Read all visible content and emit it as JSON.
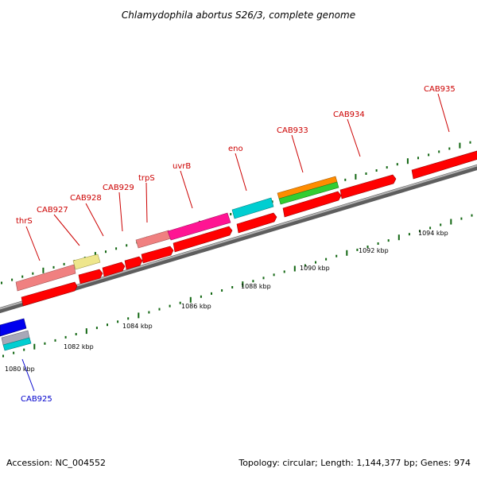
{
  "title": "Chlamydophila abortus S26/3, complete genome",
  "footer": {
    "accession": "Accession: NC_004552",
    "summary": "Topology: circular; Length: 1,144,377 bp; Genes: 974"
  },
  "colors": {
    "backbone": "#8c8c8c",
    "tick": "#116611",
    "label_red": "#cc0000",
    "label_blue": "#0000cc",
    "cds_red": "#ff0000",
    "pink": "#f08080",
    "khaki": "#eee68c",
    "magenta": "#ff1493",
    "cyan": "#00ced1",
    "orange": "#ff8c00",
    "green": "#32cd32",
    "blue": "#0000ee",
    "gray": "#a8a8b8"
  },
  "scale": {
    "unit": "kbp",
    "labels": [
      "1080 kbp",
      "1082 kbp",
      "1084 kbp",
      "1086 kbp",
      "1088 kbp",
      "1090 kbp",
      "1092 kbp",
      "1094 kbp"
    ]
  },
  "gene_labels": [
    {
      "name": "thrS",
      "color": "label_red"
    },
    {
      "name": "CAB927",
      "color": "label_red"
    },
    {
      "name": "CAB928",
      "color": "label_red"
    },
    {
      "name": "CAB929",
      "color": "label_red"
    },
    {
      "name": "trpS",
      "color": "label_red"
    },
    {
      "name": "uvrB",
      "color": "label_red"
    },
    {
      "name": "eno",
      "color": "label_red"
    },
    {
      "name": "CAB933",
      "color": "label_red"
    },
    {
      "name": "CAB934",
      "color": "label_red"
    },
    {
      "name": "CAB935",
      "color": "label_red"
    },
    {
      "name": "CAB925",
      "color": "label_blue"
    }
  ]
}
